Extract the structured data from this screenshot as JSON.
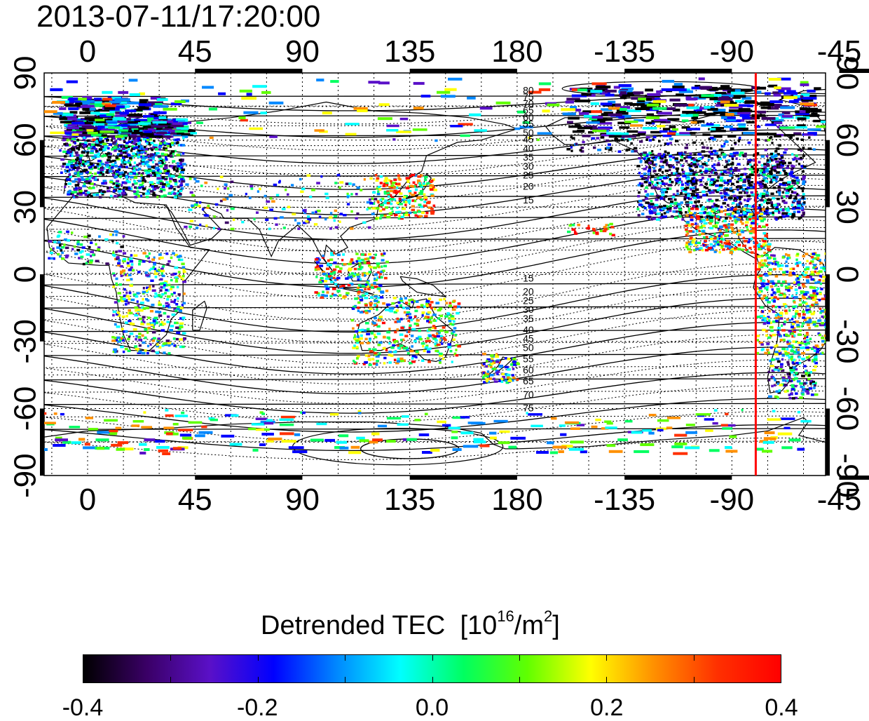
{
  "title": "2013-07-11/17:20:00",
  "map": {
    "top_lon_labels": [
      "0",
      "45",
      "90",
      "135",
      "180",
      "-135",
      "-90",
      "-45"
    ],
    "bottom_lon_labels": [
      "0",
      "45",
      "90",
      "135",
      "180",
      "-135",
      "-90",
      "-45"
    ],
    "left_lat_labels": [
      "90",
      "60",
      "30",
      "0",
      "-30",
      "-60",
      "-90"
    ],
    "right_lat_labels": [
      "90",
      "60",
      "30",
      "0",
      "-30",
      "-60",
      "-90"
    ],
    "lon_ticks_deg": [
      0,
      45,
      90,
      135,
      180,
      -135,
      -90,
      -45
    ],
    "lat_ticks_deg": [
      90,
      60,
      30,
      0,
      -30,
      -60,
      -90
    ],
    "central_lon_deg": 0,
    "terminator_lon_deg": -80,
    "terminator_color": "#ff0000",
    "contour_labels_north": [
      "80",
      "75",
      "70",
      "65",
      "60",
      "55",
      "50",
      "45",
      "40",
      "35",
      "30",
      "25",
      "20",
      "15"
    ],
    "contour_labels_south": [
      "15",
      "20",
      "25",
      "30",
      "35",
      "40",
      "45",
      "50",
      "55",
      "60",
      "65",
      "70",
      "75"
    ]
  },
  "colorbar": {
    "title": "Detrended TEC",
    "unit_base": "[10",
    "unit_exp": "16",
    "unit_mid": "/m",
    "unit_exp2": "2",
    "unit_end": "]",
    "min": -0.4,
    "max": 0.4,
    "tick_labels": [
      "-0.4",
      "-0.2",
      "0.0",
      "0.2",
      "0.4"
    ],
    "colors": [
      "#000000",
      "#3a0066",
      "#5a10c8",
      "#0000ff",
      "#0088ff",
      "#00ffff",
      "#00ff60",
      "#60ff00",
      "#ffff00",
      "#ff9000",
      "#ff3000",
      "#ff0000"
    ]
  }
}
